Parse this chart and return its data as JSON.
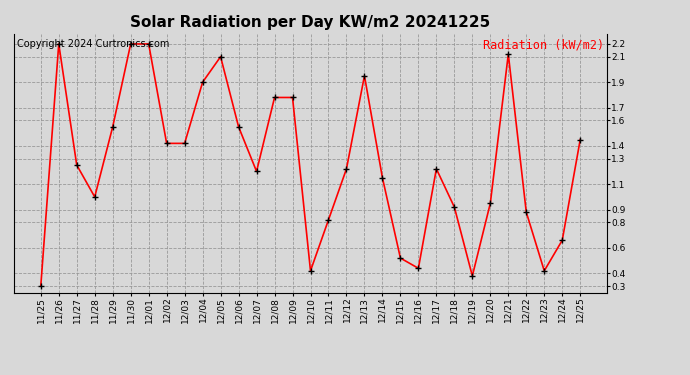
{
  "title": "Solar Radiation per Day KW/m2 20241225",
  "copyright": "Copyright 2024 Curtronics.com",
  "legend_label": "Radiation (kW/m2)",
  "dates": [
    "11/25",
    "11/26",
    "11/27",
    "11/28",
    "11/29",
    "11/30",
    "12/01",
    "12/02",
    "12/03",
    "12/04",
    "12/05",
    "12/06",
    "12/07",
    "12/08",
    "12/09",
    "12/10",
    "12/11",
    "12/12",
    "12/13",
    "12/14",
    "12/15",
    "12/16",
    "12/17",
    "12/18",
    "12/19",
    "12/20",
    "12/21",
    "12/22",
    "12/23",
    "12/24",
    "12/25"
  ],
  "values": [
    0.3,
    2.2,
    1.25,
    1.0,
    1.55,
    2.2,
    2.2,
    1.42,
    1.42,
    1.9,
    2.1,
    1.55,
    1.2,
    1.78,
    1.78,
    0.42,
    0.82,
    1.22,
    1.95,
    1.15,
    0.52,
    0.44,
    1.22,
    0.92,
    0.38,
    0.95,
    2.12,
    0.88,
    0.42,
    0.66,
    1.45
  ],
  "line_color": "red",
  "marker_color": "black",
  "marker_style": "+",
  "marker_size": 4,
  "line_width": 1.2,
  "grid_color": "#999999",
  "grid_linestyle": "--",
  "ylim": [
    0.25,
    2.28
  ],
  "yticks": [
    0.3,
    0.4,
    0.6,
    0.8,
    0.9,
    1.1,
    1.3,
    1.4,
    1.6,
    1.7,
    1.9,
    2.1,
    2.2
  ],
  "bg_color": "#d8d8d8",
  "title_fontsize": 11,
  "copyright_fontsize": 7,
  "legend_fontsize": 8.5,
  "tick_fontsize": 6.5
}
